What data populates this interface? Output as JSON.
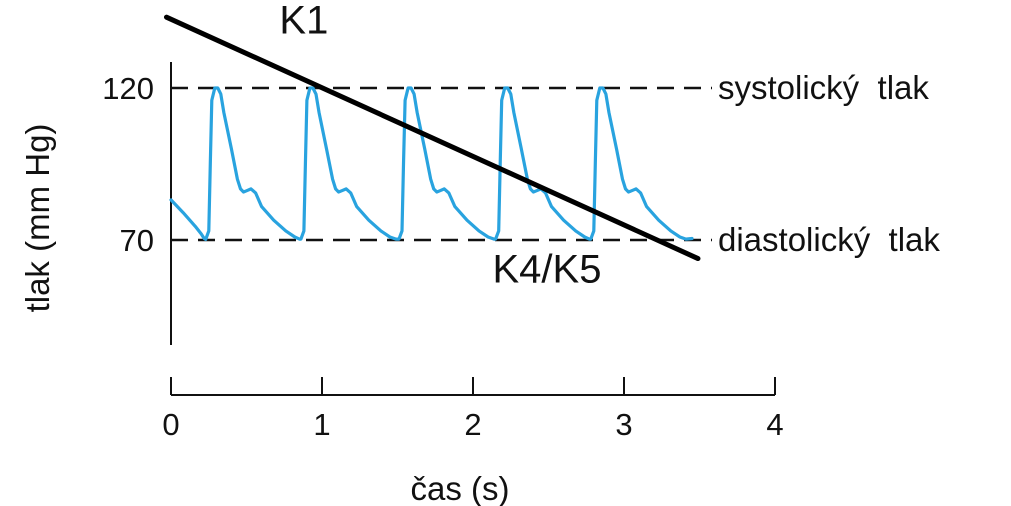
{
  "chart_data": {
    "type": "line",
    "xlabel": "čas (s)",
    "ylabel": "tlak (mm Hg)",
    "xlim": [
      0,
      4
    ],
    "ylim": [
      20,
      143
    ],
    "x_ticks": [
      0,
      1,
      2,
      3,
      4
    ],
    "x_tick_labels": [
      "0",
      "1",
      "2",
      "3",
      "4"
    ],
    "y_ticks": [
      70,
      120
    ],
    "y_tick_labels": [
      "70",
      "120"
    ],
    "grid": false,
    "legend": "none",
    "colors": {
      "waveform": "#29a3df",
      "reference": "#111111",
      "cuff_line": "#000000"
    },
    "reference_lines": [
      {
        "y": 120,
        "label": "systolický  tlak",
        "style": "dashed"
      },
      {
        "y": 70,
        "label": "diastolický  tlak",
        "style": "dashed"
      }
    ],
    "series": [
      {
        "points": [
          [
            0.0,
            83.2
          ],
          [
            0.08,
            79.0
          ],
          [
            0.16,
            74.5
          ],
          [
            0.2,
            72.0
          ],
          [
            0.22,
            70.5
          ],
          [
            0.23,
            70.2
          ],
          [
            0.25,
            73.0
          ],
          [
            0.26,
            95.0
          ],
          [
            0.27,
            116.0
          ],
          [
            0.29,
            120.0
          ],
          [
            0.31,
            120.0
          ],
          [
            0.33,
            118.0
          ],
          [
            0.35,
            112.0
          ],
          [
            0.4,
            100.0
          ],
          [
            0.44,
            90.0
          ],
          [
            0.46,
            86.8
          ],
          [
            0.48,
            85.8
          ],
          [
            0.5,
            86.2
          ],
          [
            0.53,
            86.8
          ],
          [
            0.56,
            85.5
          ],
          [
            0.6,
            81.0
          ],
          [
            0.68,
            76.5
          ],
          [
            0.76,
            73.0
          ],
          [
            0.82,
            71.0
          ],
          [
            0.85,
            70.3
          ],
          [
            0.86,
            70.3
          ],
          [
            0.88,
            73.0
          ],
          [
            0.89,
            95.0
          ],
          [
            0.9,
            116.0
          ],
          [
            0.92,
            120.0
          ],
          [
            0.94,
            120.0
          ],
          [
            0.96,
            118.0
          ],
          [
            0.98,
            112.0
          ],
          [
            1.03,
            100.0
          ],
          [
            1.07,
            90.0
          ],
          [
            1.09,
            86.8
          ],
          [
            1.11,
            85.8
          ],
          [
            1.13,
            86.2
          ],
          [
            1.16,
            86.8
          ],
          [
            1.19,
            85.5
          ],
          [
            1.23,
            81.0
          ],
          [
            1.31,
            76.5
          ],
          [
            1.39,
            73.0
          ],
          [
            1.45,
            71.0
          ],
          [
            1.49,
            70.3
          ],
          [
            1.51,
            70.3
          ],
          [
            1.53,
            73.0
          ],
          [
            1.54,
            95.0
          ],
          [
            1.55,
            116.0
          ],
          [
            1.57,
            120.0
          ],
          [
            1.59,
            120.0
          ],
          [
            1.61,
            118.0
          ],
          [
            1.63,
            112.0
          ],
          [
            1.68,
            100.0
          ],
          [
            1.72,
            90.0
          ],
          [
            1.74,
            86.8
          ],
          [
            1.76,
            85.8
          ],
          [
            1.78,
            86.2
          ],
          [
            1.81,
            86.8
          ],
          [
            1.84,
            85.5
          ],
          [
            1.88,
            81.0
          ],
          [
            1.96,
            76.5
          ],
          [
            2.04,
            73.0
          ],
          [
            2.1,
            71.0
          ],
          [
            2.14,
            70.3
          ],
          [
            2.15,
            70.3
          ],
          [
            2.17,
            73.0
          ],
          [
            2.18,
            95.0
          ],
          [
            2.19,
            116.0
          ],
          [
            2.21,
            120.0
          ],
          [
            2.23,
            120.0
          ],
          [
            2.25,
            118.0
          ],
          [
            2.27,
            112.0
          ],
          [
            2.32,
            100.0
          ],
          [
            2.36,
            90.0
          ],
          [
            2.38,
            86.8
          ],
          [
            2.4,
            85.8
          ],
          [
            2.42,
            86.2
          ],
          [
            2.45,
            86.8
          ],
          [
            2.48,
            85.5
          ],
          [
            2.52,
            81.0
          ],
          [
            2.6,
            76.5
          ],
          [
            2.68,
            73.0
          ],
          [
            2.74,
            71.0
          ],
          [
            2.77,
            70.3
          ],
          [
            2.78,
            70.3
          ],
          [
            2.8,
            73.0
          ],
          [
            2.81,
            95.0
          ],
          [
            2.82,
            116.0
          ],
          [
            2.84,
            120.0
          ],
          [
            2.86,
            120.0
          ],
          [
            2.88,
            118.0
          ],
          [
            2.9,
            112.0
          ],
          [
            2.95,
            100.0
          ],
          [
            2.99,
            90.0
          ],
          [
            3.01,
            86.8
          ],
          [
            3.03,
            85.8
          ],
          [
            3.05,
            86.2
          ],
          [
            3.08,
            86.8
          ],
          [
            3.11,
            85.5
          ],
          [
            3.15,
            81.0
          ],
          [
            3.23,
            76.5
          ],
          [
            3.31,
            73.0
          ],
          [
            3.37,
            71.0
          ],
          [
            3.41,
            70.3
          ],
          [
            3.45,
            70.5
          ]
        ]
      }
    ],
    "overlay_line": {
      "from": [
        -0.03,
        143.3
      ],
      "to": [
        3.49,
        63.9
      ]
    },
    "annotations": [
      {
        "text": "K1",
        "x": 0.88,
        "y": 138.0
      },
      {
        "text": "K4/K5",
        "x": 2.49,
        "y": 56.0
      }
    ]
  }
}
